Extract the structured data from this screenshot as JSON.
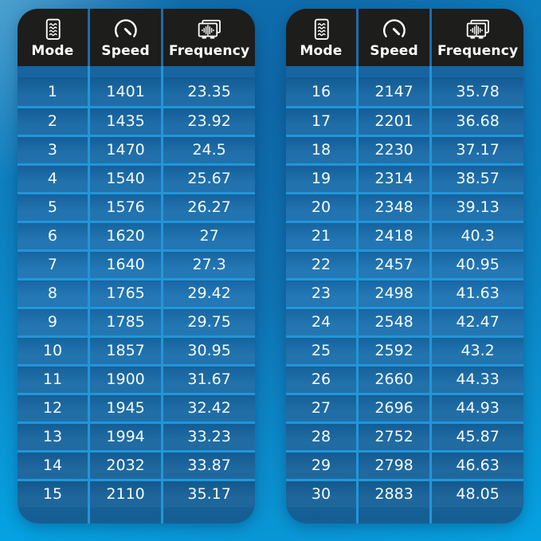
{
  "page": {
    "colors": {
      "background_bright": "#00aeef",
      "background_dark": "#0f6dae",
      "header_black": "#1d1d1b",
      "cell_blue": "#1b74b4",
      "divider_blue": "#2196da",
      "text_white": "#ffffff"
    }
  },
  "tables": [
    {
      "id": "left",
      "columns": [
        {
          "label": "Mode",
          "icon": "document-icon"
        },
        {
          "label": "Speed",
          "icon": "speedometer-icon"
        },
        {
          "label": "Frequency",
          "icon": "frequency-monitor-icon"
        }
      ],
      "rows": [
        {
          "mode": "1",
          "speed": "1401",
          "frequency": "23.35"
        },
        {
          "mode": "2",
          "speed": "1435",
          "frequency": "23.92"
        },
        {
          "mode": "3",
          "speed": "1470",
          "frequency": "24.5"
        },
        {
          "mode": "4",
          "speed": "1540",
          "frequency": "25.67"
        },
        {
          "mode": "5",
          "speed": "1576",
          "frequency": "26.27"
        },
        {
          "mode": "6",
          "speed": "1620",
          "frequency": "27"
        },
        {
          "mode": "7",
          "speed": "1640",
          "frequency": "27.3"
        },
        {
          "mode": "8",
          "speed": "1765",
          "frequency": "29.42"
        },
        {
          "mode": "9",
          "speed": "1785",
          "frequency": "29.75"
        },
        {
          "mode": "10",
          "speed": "1857",
          "frequency": "30.95"
        },
        {
          "mode": "11",
          "speed": "1900",
          "frequency": "31.67"
        },
        {
          "mode": "12",
          "speed": "1945",
          "frequency": "32.42"
        },
        {
          "mode": "13",
          "speed": "1994",
          "frequency": "33.23"
        },
        {
          "mode": "14",
          "speed": "2032",
          "frequency": "33.87"
        },
        {
          "mode": "15",
          "speed": "2110",
          "frequency": "35.17"
        }
      ]
    },
    {
      "id": "right",
      "columns": [
        {
          "label": "Mode",
          "icon": "document-icon"
        },
        {
          "label": "Speed",
          "icon": "speedometer-icon"
        },
        {
          "label": "Frequency",
          "icon": "frequency-monitor-icon"
        }
      ],
      "rows": [
        {
          "mode": "16",
          "speed": "2147",
          "frequency": "35.78"
        },
        {
          "mode": "17",
          "speed": "2201",
          "frequency": "36.68"
        },
        {
          "mode": "18",
          "speed": "2230",
          "frequency": "37.17"
        },
        {
          "mode": "19",
          "speed": "2314",
          "frequency": "38.57"
        },
        {
          "mode": "20",
          "speed": "2348",
          "frequency": "39.13"
        },
        {
          "mode": "21",
          "speed": "2418",
          "frequency": "40.3"
        },
        {
          "mode": "22",
          "speed": "2457",
          "frequency": "40.95"
        },
        {
          "mode": "23",
          "speed": "2498",
          "frequency": "41.63"
        },
        {
          "mode": "24",
          "speed": "2548",
          "frequency": "42.47"
        },
        {
          "mode": "25",
          "speed": "2592",
          "frequency": "43.2"
        },
        {
          "mode": "26",
          "speed": "2660",
          "frequency": "44.33"
        },
        {
          "mode": "27",
          "speed": "2696",
          "frequency": "44.93"
        },
        {
          "mode": "28",
          "speed": "2752",
          "frequency": "45.87"
        },
        {
          "mode": "29",
          "speed": "2798",
          "frequency": "46.63"
        },
        {
          "mode": "30",
          "speed": "2883",
          "frequency": "48.05"
        }
      ]
    }
  ],
  "chart_data": {
    "type": "table",
    "title": "",
    "columns": [
      "Mode",
      "Speed",
      "Frequency"
    ],
    "rows": [
      [
        1,
        1401,
        23.35
      ],
      [
        2,
        1435,
        23.92
      ],
      [
        3,
        1470,
        24.5
      ],
      [
        4,
        1540,
        25.67
      ],
      [
        5,
        1576,
        26.27
      ],
      [
        6,
        1620,
        27
      ],
      [
        7,
        1640,
        27.3
      ],
      [
        8,
        1765,
        29.42
      ],
      [
        9,
        1785,
        29.75
      ],
      [
        10,
        1857,
        30.95
      ],
      [
        11,
        1900,
        31.67
      ],
      [
        12,
        1945,
        32.42
      ],
      [
        13,
        1994,
        33.23
      ],
      [
        14,
        2032,
        33.87
      ],
      [
        15,
        2110,
        35.17
      ],
      [
        16,
        2147,
        35.78
      ],
      [
        17,
        2201,
        36.68
      ],
      [
        18,
        2230,
        37.17
      ],
      [
        19,
        2314,
        38.57
      ],
      [
        20,
        2348,
        39.13
      ],
      [
        21,
        2418,
        40.3
      ],
      [
        22,
        2457,
        40.95
      ],
      [
        23,
        2498,
        41.63
      ],
      [
        24,
        2548,
        42.47
      ],
      [
        25,
        2592,
        43.2
      ],
      [
        26,
        2660,
        44.33
      ],
      [
        27,
        2696,
        44.93
      ],
      [
        28,
        2752,
        45.87
      ],
      [
        29,
        2798,
        46.63
      ],
      [
        30,
        2883,
        48.05
      ]
    ]
  }
}
